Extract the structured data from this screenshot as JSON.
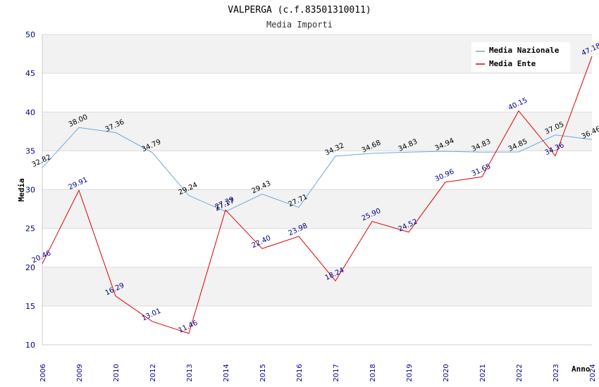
{
  "chart_data": {
    "type": "line",
    "title": "VALPERGA (c.f.83501310011)",
    "subtitle": "Media Importi",
    "xlabel": "Anno",
    "ylabel": "Media",
    "ylim": [
      10,
      50
    ],
    "yticks": [
      10,
      15,
      20,
      25,
      30,
      35,
      40,
      45,
      50
    ],
    "grid": "horizontal bands",
    "legend_position": "top-right",
    "categories": [
      "2006",
      "2009",
      "2010",
      "2012",
      "2013",
      "2014",
      "2015",
      "2016",
      "2017",
      "2018",
      "2019",
      "2020",
      "2021",
      "2022",
      "2023",
      "2024"
    ],
    "series": [
      {
        "name": "Media Nazionale",
        "color": "#6fa8dc",
        "values": [
          32.82,
          38.0,
          37.36,
          34.79,
          29.24,
          27.17,
          29.43,
          27.71,
          34.32,
          34.68,
          34.83,
          34.94,
          34.83,
          34.85,
          37.05,
          36.46
        ],
        "labels": [
          "32.82",
          "38.00",
          "37.36",
          "34.79",
          "29.24",
          "27.17",
          "29.43",
          "27.71",
          "34.32",
          "34.68",
          "34.83",
          "34.94",
          "34.83",
          "34.85",
          "37.05",
          "36.46"
        ]
      },
      {
        "name": "Media Ente",
        "color": "#e00000",
        "values": [
          20.46,
          29.91,
          16.29,
          13.01,
          11.46,
          27.39,
          22.4,
          23.98,
          18.24,
          25.9,
          24.52,
          30.96,
          31.65,
          40.15,
          34.36,
          47.18
        ],
        "labels": [
          "20.46",
          "29.91",
          "16.29",
          "13.01",
          "11.46",
          "27.39",
          "22.40",
          "23.98",
          "18.24",
          "25.90",
          "24.52",
          "30.96",
          "31.65",
          "40.15",
          "34.36",
          "47.18"
        ]
      }
    ]
  }
}
